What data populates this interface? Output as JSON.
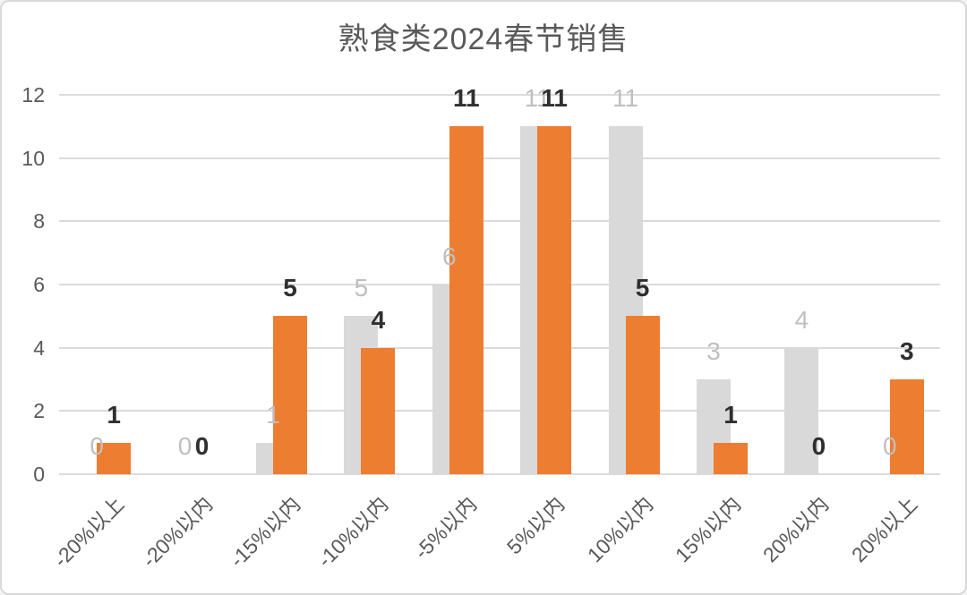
{
  "window": {
    "background": "#FFFFFF",
    "border_color": "#D9D9D9"
  },
  "chart_data": {
    "type": "bar",
    "title": "熟食类2024春节销售",
    "categories": [
      "-20%以上",
      "-20%以内",
      "-15%以内",
      "-10%以内",
      "-5%以内",
      "5%以内",
      "10%以内",
      "15%以内",
      "20%以内",
      "20%以上"
    ],
    "series": [
      {
        "name": "gray",
        "color": "#D9D9D9",
        "label_color": "#BFBFBF",
        "label_bold": false,
        "values": [
          0,
          0,
          1,
          5,
          6,
          11,
          11,
          3,
          4,
          0
        ]
      },
      {
        "name": "orange",
        "color": "#ED7D31",
        "label_color": "#2F2F2F",
        "label_bold": true,
        "values": [
          1,
          0,
          5,
          4,
          11,
          11,
          5,
          1,
          0,
          3
        ]
      }
    ],
    "y_axis": {
      "ticks": [
        0,
        2,
        4,
        6,
        8,
        10,
        12
      ],
      "min": 0,
      "max": 12
    },
    "grid": true,
    "legend": false,
    "data_labels": true,
    "colors": {
      "axis_text": "#595959",
      "gridline": "#DBDBDB",
      "title_text": "#595959"
    }
  }
}
